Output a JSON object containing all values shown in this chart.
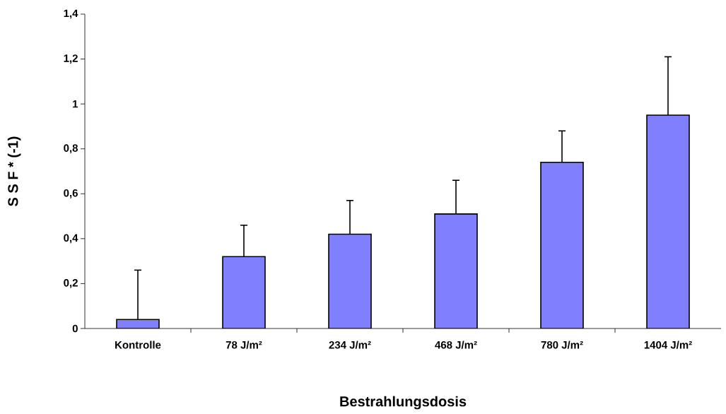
{
  "chart_data": {
    "type": "bar",
    "xlabel": "Bestrahlungsdosis",
    "ylabel": "S S F * (-1)",
    "categories": [
      "Kontrolle",
      "78 J/m²",
      "234 J/m²",
      "468 J/m²",
      "780 J/m²",
      "1404 J/m²"
    ],
    "values": [
      0.04,
      0.32,
      0.42,
      0.51,
      0.74,
      0.95
    ],
    "errors": [
      [
        0.04,
        0.26
      ],
      [
        0.32,
        0.46
      ],
      [
        0.42,
        0.57
      ],
      [
        0.51,
        0.66
      ],
      [
        0.74,
        0.88
      ],
      [
        0.95,
        1.21
      ]
    ],
    "color": "#8080ff",
    "ylim": [
      0,
      1.4
    ],
    "yticks": [
      0,
      {
        "value": 0.2,
        "label": "0,2"
      },
      {
        "value": 0.4,
        "label": "0,4"
      },
      {
        "value": 0.6,
        "label": "0,6"
      },
      {
        "value": 0.8,
        "label": "0,8"
      },
      1,
      {
        "value": 1.2,
        "label": "1,2"
      },
      {
        "value": 1.4,
        "label": "1,4"
      }
    ],
    "grid": false
  }
}
